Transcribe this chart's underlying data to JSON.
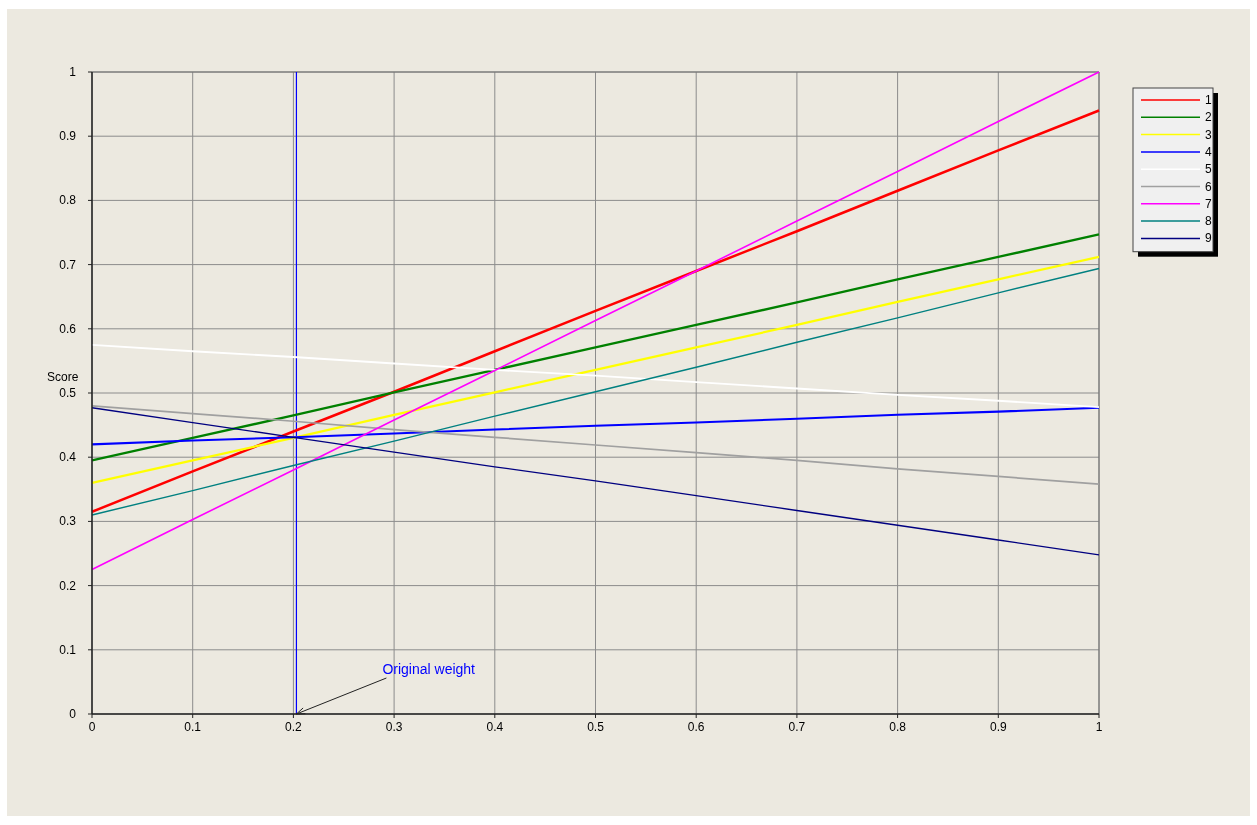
{
  "chart_data": {
    "type": "line",
    "ylabel": "Score",
    "x": [
      0,
      0.1,
      0.2,
      0.3,
      0.4,
      0.5,
      0.6,
      0.7,
      0.8,
      0.9,
      1
    ],
    "xlim": [
      0,
      1
    ],
    "ylim": [
      0,
      1
    ],
    "xticks": [
      0,
      0.1,
      0.2,
      0.3,
      0.4,
      0.5,
      0.6,
      0.7,
      0.8,
      0.9,
      1
    ],
    "yticks": [
      0,
      0.1,
      0.2,
      0.3,
      0.4,
      0.5,
      0.6,
      0.7,
      0.8,
      0.9,
      1
    ],
    "grid": true,
    "legend": "top right",
    "line_style": "solid",
    "marker": "none",
    "series": [
      {
        "name": "1",
        "color": "#ff0000",
        "values": [
          0.315,
          0.378,
          0.44,
          0.502,
          0.565,
          0.628,
          0.69,
          0.752,
          0.815,
          0.878,
          0.94
        ]
      },
      {
        "name": "2",
        "color": "#008000",
        "values": [
          0.395,
          0.43,
          0.465,
          0.501,
          0.536,
          0.571,
          0.606,
          0.641,
          0.677,
          0.712,
          0.747
        ]
      },
      {
        "name": "3",
        "color": "#ffff00",
        "values": [
          0.36,
          0.395,
          0.43,
          0.466,
          0.501,
          0.536,
          0.571,
          0.606,
          0.642,
          0.677,
          0.712
        ]
      },
      {
        "name": "4",
        "color": "#0000ff",
        "values": [
          0.42,
          0.426,
          0.431,
          0.437,
          0.443,
          0.449,
          0.454,
          0.46,
          0.466,
          0.471,
          0.477
        ]
      },
      {
        "name": "5",
        "color": "#ffffff",
        "values": [
          0.575,
          0.565,
          0.556,
          0.546,
          0.536,
          0.527,
          0.517,
          0.507,
          0.497,
          0.488,
          0.478
        ]
      },
      {
        "name": "6",
        "color": "#a0a0a0",
        "values": [
          0.48,
          0.468,
          0.456,
          0.443,
          0.431,
          0.419,
          0.407,
          0.395,
          0.382,
          0.37,
          0.358
        ]
      },
      {
        "name": "7",
        "color": "#ff00ff",
        "values": [
          0.225,
          0.303,
          0.38,
          0.458,
          0.535,
          0.613,
          0.69,
          0.768,
          0.845,
          0.923,
          1.0
        ]
      },
      {
        "name": "8",
        "color": "#008080",
        "values": [
          0.31,
          0.348,
          0.387,
          0.425,
          0.464,
          0.502,
          0.54,
          0.579,
          0.617,
          0.656,
          0.694
        ]
      },
      {
        "name": "9",
        "color": "#000080",
        "values": [
          0.477,
          0.454,
          0.431,
          0.408,
          0.385,
          0.363,
          0.34,
          0.317,
          0.294,
          0.271,
          0.248
        ]
      }
    ],
    "ref_lines": [
      {
        "axis": "x",
        "value": 0.203,
        "color": "#0000ff"
      }
    ],
    "annotations": [
      {
        "text": "Original weight",
        "x": 0.203,
        "y": 0
      }
    ]
  }
}
